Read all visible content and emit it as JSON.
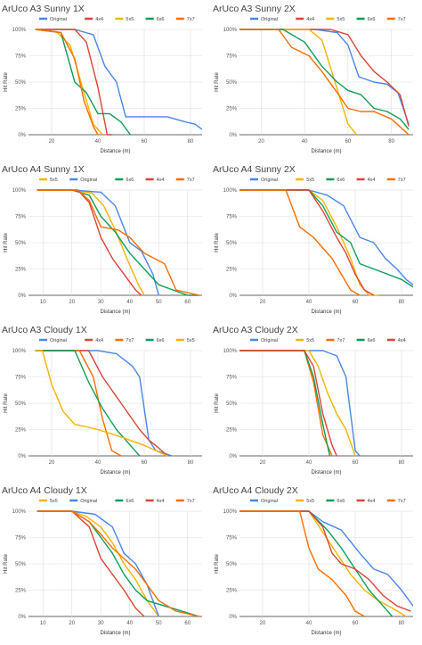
{
  "colors": {
    "Original": "#4a86e8",
    "4x4": "#db4437",
    "5x5": "#f4b400",
    "6x6": "#0f9d58",
    "7x7": "#ff6d00"
  },
  "chart_data": [
    {
      "type": "line",
      "title": "ArUco A3  Sunny 1X",
      "xlabel": "Distance (m)",
      "ylabel": "Hit Rate",
      "xlim": [
        10,
        85
      ],
      "xticks": [
        20,
        40,
        60,
        80
      ],
      "ylim": [
        0,
        100
      ],
      "yticks": [
        "0%",
        "25%",
        "50%",
        "75%",
        "100%"
      ],
      "legend": [
        "Original",
        "4x4",
        "5x5",
        "6x6",
        "7x7"
      ],
      "series": [
        {
          "name": "Original",
          "x": [
            13,
            20,
            30,
            38,
            43,
            48,
            52,
            60,
            70,
            78,
            82,
            85
          ],
          "y": [
            100,
            100,
            100,
            95,
            65,
            50,
            17,
            17,
            17,
            12,
            10,
            5
          ]
        },
        {
          "name": "4x4",
          "x": [
            13,
            30,
            35,
            40,
            44,
            46
          ],
          "y": [
            100,
            100,
            88,
            45,
            0,
            0
          ]
        },
        {
          "name": "5x5",
          "x": [
            13,
            22,
            28,
            34,
            38,
            42
          ],
          "y": [
            100,
            98,
            85,
            40,
            10,
            0
          ]
        },
        {
          "name": "6x6",
          "x": [
            13,
            24,
            30,
            35,
            40,
            45,
            50,
            54
          ],
          "y": [
            100,
            97,
            50,
            40,
            20,
            20,
            12,
            0
          ]
        },
        {
          "name": "7x7",
          "x": [
            13,
            24,
            30,
            34,
            38,
            40
          ],
          "y": [
            100,
            97,
            72,
            32,
            8,
            0
          ]
        }
      ]
    },
    {
      "type": "line",
      "title": "ArUco A3  Sunny 2X",
      "xlabel": "Distance (m)",
      "ylabel": "Hit Rate",
      "xlim": [
        10,
        90
      ],
      "xticks": [
        20,
        40,
        60,
        80
      ],
      "ylim": [
        0,
        100
      ],
      "yticks": [
        "0%",
        "25%",
        "50%",
        "75%",
        "100%"
      ],
      "legend": [
        "Original",
        "4x4",
        "5x5",
        "6x6",
        "7x7"
      ],
      "series": [
        {
          "name": "Original",
          "x": [
            10,
            45,
            55,
            60,
            65,
            72,
            78,
            83,
            88
          ],
          "y": [
            100,
            100,
            97,
            85,
            55,
            50,
            48,
            40,
            10
          ]
        },
        {
          "name": "4x4",
          "x": [
            10,
            52,
            60,
            66,
            72,
            78,
            84,
            88
          ],
          "y": [
            100,
            100,
            95,
            75,
            60,
            50,
            38,
            8
          ]
        },
        {
          "name": "5x5",
          "x": [
            10,
            42,
            48,
            54,
            60,
            64
          ],
          "y": [
            100,
            100,
            90,
            50,
            10,
            0
          ]
        },
        {
          "name": "6x6",
          "x": [
            10,
            30,
            40,
            48,
            55,
            60,
            66,
            72,
            78,
            84,
            88
          ],
          "y": [
            100,
            100,
            88,
            65,
            50,
            42,
            38,
            25,
            22,
            15,
            5
          ]
        },
        {
          "name": "7x7",
          "x": [
            10,
            28,
            34,
            42,
            48,
            55,
            60,
            66,
            72,
            80,
            88
          ],
          "y": [
            100,
            100,
            83,
            75,
            60,
            40,
            25,
            22,
            22,
            15,
            0
          ]
        }
      ]
    },
    {
      "type": "line",
      "title": "ArUco A4  Sunny 1X",
      "xlabel": "Distance (m)",
      "ylabel": "Hit Rate",
      "xlim": [
        5,
        65
      ],
      "xticks": [
        10,
        20,
        30,
        40,
        50,
        60
      ],
      "ylim": [
        0,
        100
      ],
      "yticks": [
        "0%",
        "25%",
        "50%",
        "75%",
        "100%"
      ],
      "legend": [
        "5x5",
        "Original",
        "6x6",
        "4x4",
        "7x7"
      ],
      "series": [
        {
          "name": "5x5",
          "x": [
            8,
            20,
            27,
            31,
            35,
            39,
            43,
            45
          ],
          "y": [
            100,
            100,
            97,
            85,
            62,
            35,
            10,
            0
          ]
        },
        {
          "name": "Original",
          "x": [
            8,
            20,
            30,
            35,
            40,
            44,
            48,
            50
          ],
          "y": [
            100,
            100,
            98,
            85,
            50,
            42,
            20,
            0
          ]
        },
        {
          "name": "6x6",
          "x": [
            8,
            20,
            26,
            30,
            35,
            40,
            45,
            50,
            55,
            60,
            64
          ],
          "y": [
            100,
            100,
            95,
            75,
            60,
            40,
            25,
            10,
            5,
            0,
            0
          ]
        },
        {
          "name": "4x4",
          "x": [
            8,
            22,
            26,
            30,
            34,
            38,
            42,
            44
          ],
          "y": [
            100,
            100,
            88,
            55,
            35,
            20,
            5,
            0
          ]
        },
        {
          "name": "7x7",
          "x": [
            8,
            22,
            26,
            30,
            36,
            40,
            45,
            52,
            56,
            64
          ],
          "y": [
            100,
            100,
            90,
            65,
            62,
            55,
            40,
            30,
            5,
            0
          ]
        }
      ]
    },
    {
      "type": "line",
      "title": "ArUco A4  Sunny 2X",
      "xlabel": "Distance (m)",
      "ylabel": "Hit Rate",
      "xlim": [
        10,
        85
      ],
      "xticks": [
        20,
        40,
        60,
        80
      ],
      "ylim": [
        0,
        100
      ],
      "yticks": [
        "0%",
        "25%",
        "50%",
        "75%",
        "100%"
      ],
      "legend": [
        "Original",
        "5x5",
        "6x6",
        "4x4",
        "7x7"
      ],
      "series": [
        {
          "name": "Original",
          "x": [
            10,
            40,
            48,
            55,
            62,
            68,
            73,
            78,
            82,
            85
          ],
          "y": [
            100,
            100,
            95,
            85,
            55,
            50,
            35,
            25,
            15,
            10
          ]
        },
        {
          "name": "5x5",
          "x": [
            10,
            40,
            46,
            52,
            58,
            62,
            66,
            70
          ],
          "y": [
            100,
            100,
            90,
            65,
            35,
            10,
            0,
            0
          ]
        },
        {
          "name": "6x6",
          "x": [
            10,
            40,
            46,
            52,
            58,
            62,
            68,
            74,
            80,
            85
          ],
          "y": [
            100,
            100,
            85,
            60,
            50,
            30,
            25,
            20,
            15,
            8
          ]
        },
        {
          "name": "4x4",
          "x": [
            10,
            40,
            46,
            52,
            56,
            60,
            64,
            68
          ],
          "y": [
            100,
            100,
            80,
            55,
            40,
            20,
            5,
            0
          ]
        },
        {
          "name": "7x7",
          "x": [
            10,
            30,
            36,
            42,
            50,
            54,
            58,
            62
          ],
          "y": [
            100,
            100,
            65,
            55,
            35,
            20,
            5,
            0
          ]
        }
      ]
    },
    {
      "type": "line",
      "title": "ArUco A3  Cloudy 1X",
      "xlabel": "Distance (m)",
      "ylabel": "Hit Rate",
      "xlim": [
        10,
        85
      ],
      "xticks": [
        20,
        40,
        60,
        80
      ],
      "ylim": [
        0,
        100
      ],
      "yticks": [
        "0%",
        "25%",
        "50%",
        "75%",
        "100%"
      ],
      "legend": [
        "Original",
        "4x4",
        "7x7",
        "6x6",
        "5x5"
      ],
      "series": [
        {
          "name": "Original",
          "x": [
            13,
            40,
            48,
            55,
            58,
            62,
            65,
            72
          ],
          "y": [
            100,
            100,
            97,
            85,
            75,
            15,
            5,
            0
          ]
        },
        {
          "name": "4x4",
          "x": [
            13,
            36,
            42,
            50,
            58,
            62,
            66,
            70
          ],
          "y": [
            100,
            100,
            75,
            50,
            25,
            15,
            8,
            0
          ]
        },
        {
          "name": "7x7",
          "x": [
            13,
            32,
            38,
            42,
            46,
            50
          ],
          "y": [
            100,
            100,
            75,
            35,
            5,
            0
          ]
        },
        {
          "name": "6x6",
          "x": [
            13,
            30,
            36,
            42,
            48,
            54,
            58
          ],
          "y": [
            100,
            100,
            70,
            45,
            25,
            10,
            0
          ]
        },
        {
          "name": "5x5",
          "x": [
            13,
            16,
            20,
            25,
            30,
            40,
            50,
            60,
            70
          ],
          "y": [
            100,
            100,
            68,
            42,
            30,
            25,
            18,
            10,
            0
          ]
        }
      ]
    },
    {
      "type": "line",
      "title": "ArUco A3  Cloudy 2X",
      "xlabel": "Distance (m)",
      "ylabel": "Hit Rate",
      "xlim": [
        10,
        85
      ],
      "xticks": [
        20,
        40,
        60,
        80
      ],
      "ylim": [
        0,
        100
      ],
      "yticks": [
        "0%",
        "25%",
        "50%",
        "75%",
        "100%"
      ],
      "legend": [
        "Original",
        "5x5",
        "7x7",
        "6x6",
        "4x4"
      ],
      "series": [
        {
          "name": "Original",
          "x": [
            10,
            46,
            52,
            56,
            60,
            62
          ],
          "y": [
            100,
            100,
            95,
            75,
            5,
            0
          ]
        },
        {
          "name": "5x5",
          "x": [
            10,
            40,
            44,
            48,
            52,
            56,
            60
          ],
          "y": [
            100,
            100,
            85,
            60,
            40,
            25,
            0
          ]
        },
        {
          "name": "7x7",
          "x": [
            10,
            38,
            42,
            46,
            50
          ],
          "y": [
            100,
            100,
            70,
            20,
            0
          ]
        },
        {
          "name": "6x6",
          "x": [
            10,
            38,
            42,
            46,
            49
          ],
          "y": [
            100,
            100,
            75,
            30,
            0
          ]
        },
        {
          "name": "4x4",
          "x": [
            10,
            38,
            42,
            46,
            50,
            52
          ],
          "y": [
            100,
            100,
            85,
            40,
            10,
            0
          ]
        }
      ]
    },
    {
      "type": "line",
      "title": "ArUco A4  Cloudy 1X",
      "xlabel": "Distance (m)",
      "ylabel": "Hit Rate",
      "xlim": [
        5,
        65
      ],
      "xticks": [
        10,
        20,
        30,
        40,
        50,
        60
      ],
      "ylim": [
        0,
        100
      ],
      "yticks": [
        "0%",
        "25%",
        "50%",
        "75%",
        "100%"
      ],
      "legend": [
        "5x5",
        "Original",
        "6x6",
        "4x4",
        "7x7"
      ],
      "series": [
        {
          "name": "5x5",
          "x": [
            8,
            20,
            25,
            30,
            34,
            38,
            42,
            46,
            50
          ],
          "y": [
            100,
            100,
            95,
            85,
            70,
            50,
            35,
            15,
            0
          ]
        },
        {
          "name": "Original",
          "x": [
            8,
            20,
            28,
            34,
            38,
            42,
            46,
            50
          ],
          "y": [
            100,
            100,
            97,
            85,
            60,
            50,
            30,
            0
          ]
        },
        {
          "name": "6x6",
          "x": [
            8,
            20,
            26,
            30,
            34,
            38,
            42,
            46,
            52,
            58,
            64
          ],
          "y": [
            100,
            100,
            90,
            75,
            60,
            40,
            25,
            15,
            10,
            5,
            0
          ]
        },
        {
          "name": "4x4",
          "x": [
            8,
            20,
            26,
            30,
            34,
            38,
            42,
            45
          ],
          "y": [
            100,
            100,
            85,
            55,
            40,
            25,
            8,
            0
          ]
        },
        {
          "name": "7x7",
          "x": [
            8,
            20,
            26,
            30,
            34,
            38,
            42,
            46,
            50,
            56,
            64
          ],
          "y": [
            100,
            100,
            90,
            78,
            65,
            55,
            45,
            30,
            15,
            5,
            0
          ]
        }
      ]
    },
    {
      "type": "line",
      "title": "ArUco A4  Cloudy 2X",
      "xlabel": "Distance (m)",
      "ylabel": "Hit Rate",
      "xlim": [
        10,
        85
      ],
      "xticks": [
        20,
        40,
        60,
        80
      ],
      "ylim": [
        0,
        100
      ],
      "yticks": [
        "0%",
        "25%",
        "50%",
        "75%",
        "100%"
      ],
      "legend": [
        "Original",
        "5x5",
        "6x6",
        "4x4",
        "7x7"
      ],
      "series": [
        {
          "name": "Original",
          "x": [
            10,
            40,
            46,
            54,
            62,
            68,
            74,
            80,
            85
          ],
          "y": [
            100,
            100,
            90,
            82,
            60,
            45,
            40,
            25,
            10
          ]
        },
        {
          "name": "5x5",
          "x": [
            10,
            40,
            46,
            52,
            58,
            64,
            70,
            76,
            82
          ],
          "y": [
            100,
            100,
            80,
            60,
            40,
            25,
            15,
            8,
            0
          ]
        },
        {
          "name": "6x6",
          "x": [
            10,
            40,
            48,
            54,
            60,
            66,
            72,
            76
          ],
          "y": [
            100,
            100,
            82,
            65,
            45,
            25,
            10,
            0
          ]
        },
        {
          "name": "4x4",
          "x": [
            10,
            40,
            46,
            50,
            54,
            60,
            66,
            72,
            78,
            84
          ],
          "y": [
            100,
            100,
            85,
            60,
            50,
            45,
            35,
            20,
            10,
            5
          ]
        },
        {
          "name": "7x7",
          "x": [
            10,
            36,
            40,
            44,
            50,
            56,
            60,
            64
          ],
          "y": [
            100,
            100,
            65,
            45,
            35,
            20,
            5,
            0
          ]
        }
      ]
    }
  ]
}
